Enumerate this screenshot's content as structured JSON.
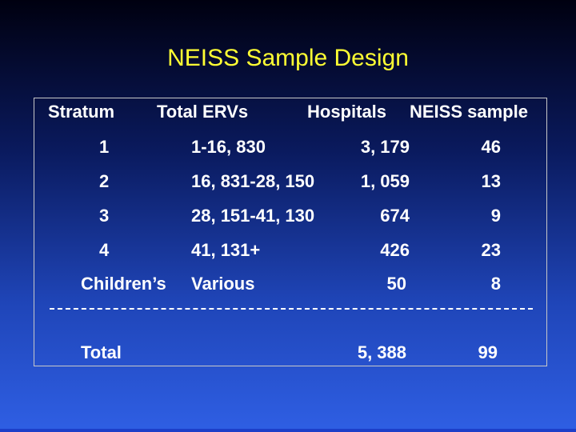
{
  "title": "NEISS Sample Design",
  "headers": {
    "stratum": "Stratum",
    "total_ervs": "Total ERVs",
    "hospitals": "Hospitals",
    "neiss_sample": "NEISS sample"
  },
  "rows": [
    {
      "stratum": "1",
      "ervs": "1-16, 830",
      "hospitals": "3, 179",
      "sample": "46"
    },
    {
      "stratum": "2",
      "ervs": "16, 831-28, 150",
      "hospitals": "1, 059",
      "sample": "13"
    },
    {
      "stratum": "3",
      "ervs": "28, 151-41, 130",
      "hospitals": "674",
      "sample": "9"
    },
    {
      "stratum": "4",
      "ervs": "41, 131+",
      "hospitals": "426",
      "sample": "23"
    },
    {
      "stratum": "Children’s",
      "ervs": "Various",
      "hospitals": "50",
      "sample": "8"
    }
  ],
  "total": {
    "label": "Total",
    "hospitals": "5, 388",
    "sample": "99"
  },
  "colors": {
    "title": "#ffff33",
    "text": "#ffffff",
    "border": "#c8c8c8",
    "background_top": "#000010",
    "background_bottom": "#2f5fe4"
  }
}
